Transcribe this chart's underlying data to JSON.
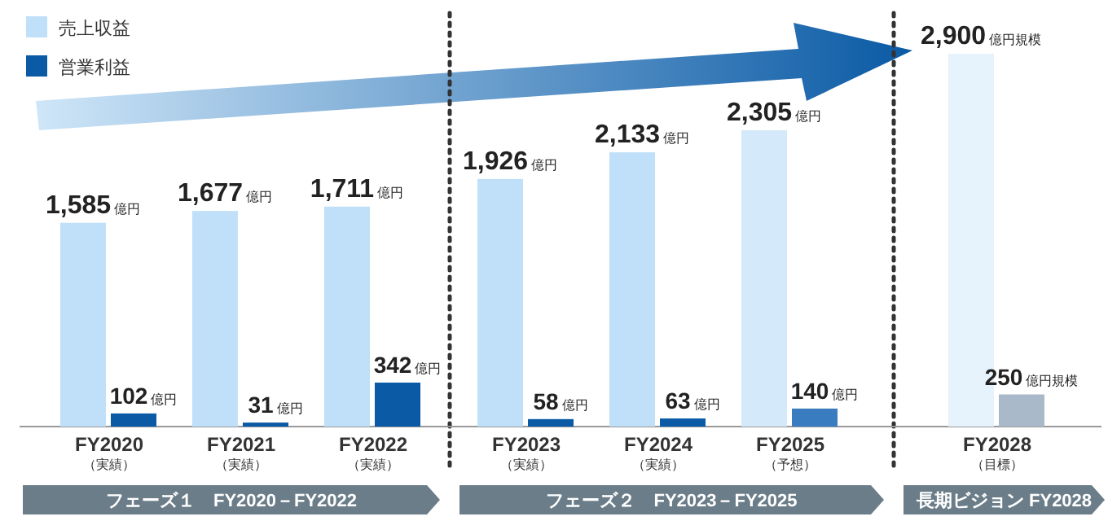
{
  "chart_data": {
    "type": "bar",
    "categories": [
      "FY2020\n（実績）",
      "FY2021\n（実績）",
      "FY2022\n（実績）",
      "FY2023\n（実績）",
      "FY2024\n（実績）",
      "FY2025\n（予想）",
      "FY2028\n（目標）"
    ],
    "series": [
      {
        "name": "売上収益",
        "color": "#bfe0f8",
        "colors": [
          "#bfe0f8",
          "#bfe0f8",
          "#bfe0f8",
          "#bfe0f8",
          "#bfe0f8",
          "#d4eafa",
          "#e6f3fc"
        ],
        "values": [
          1585,
          1677,
          1711,
          1926,
          2133,
          2305,
          2900
        ],
        "value_labels": [
          "1,585億円",
          "1,677億円",
          "1,711億円",
          "1,926億円",
          "2,133億円",
          "2,305億円",
          "2,900億円規模"
        ]
      },
      {
        "name": "営業利益",
        "color": "#0a5aa5",
        "colors": [
          "#0a5aa5",
          "#0a5aa5",
          "#0a5aa5",
          "#0a5aa5",
          "#0a5aa5",
          "#3a7cc0",
          "#a9b9c9"
        ],
        "values": [
          102,
          31,
          342,
          58,
          63,
          140,
          250
        ],
        "value_labels": [
          "102億円",
          "31億円",
          "342億円",
          "58億円",
          "63億円",
          "140億円",
          "250億円規模"
        ]
      }
    ],
    "annotations": [
      "フェーズ１　FY2020－FY2022",
      "フェーズ２　FY2023－FY2025",
      "長期ビジョン FY2028"
    ],
    "legend": "top left"
  }
}
